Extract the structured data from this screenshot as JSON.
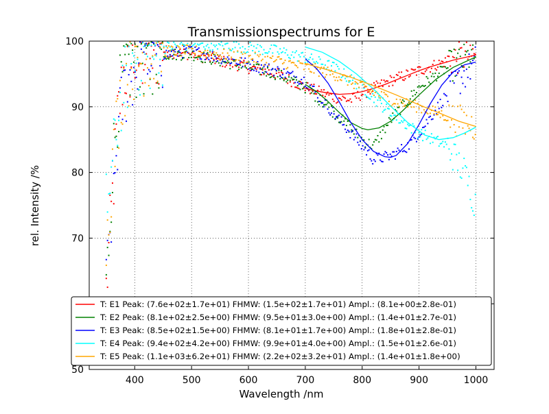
{
  "chart_data": {
    "type": "scatter",
    "title": "Transmissionspectrums for E",
    "xlabel": "Wavelength  /nm",
    "ylabel": "rel. Intensity  /%",
    "xlim": [
      320,
      1032
    ],
    "ylim": [
      50,
      100
    ],
    "xticks": [
      400,
      500,
      600,
      700,
      800,
      900,
      1000
    ],
    "yticks": [
      50,
      60,
      70,
      80,
      90,
      100
    ],
    "grid": true,
    "legend_position": "lower-center",
    "series": [
      {
        "name": "T: E1 Peak: (7.6e+02±1.7e+01)  FHMW: (1.5e+02±1.7e+01)  Ampl.: (8.1e+00±2.8e-01)",
        "color": "#ff0000",
        "points": [
          [
            350,
            62
          ],
          [
            360,
            75
          ],
          [
            370,
            88
          ],
          [
            380,
            95
          ],
          [
            400,
            97
          ],
          [
            420,
            98
          ],
          [
            450,
            98.5
          ],
          [
            500,
            98
          ],
          [
            550,
            97
          ],
          [
            600,
            96
          ],
          [
            650,
            95
          ],
          [
            700,
            93
          ],
          [
            750,
            91.5
          ],
          [
            780,
            91
          ],
          [
            800,
            92
          ],
          [
            850,
            94
          ],
          [
            900,
            95.5
          ],
          [
            950,
            97
          ],
          [
            1000,
            98
          ]
        ],
        "fit": [
          [
            700,
            92.8
          ],
          [
            720,
            92.4
          ],
          [
            740,
            92.1
          ],
          [
            760,
            91.9
          ],
          [
            780,
            92.0
          ],
          [
            800,
            92.3
          ],
          [
            820,
            92.8
          ],
          [
            840,
            93.4
          ],
          [
            860,
            94.1
          ],
          [
            880,
            94.8
          ],
          [
            900,
            95.5
          ],
          [
            920,
            96.1
          ],
          [
            940,
            96.6
          ],
          [
            960,
            97.1
          ],
          [
            980,
            97.5
          ],
          [
            1000,
            97.9
          ]
        ]
      },
      {
        "name": "T: E2 Peak: (8.1e+02±2.5e+00)  FHMW: (9.5e+01±3.0e+00)  Ampl.: (1.4e+01±2.7e-01)",
        "color": "#008000",
        "points": [
          [
            350,
            62
          ],
          [
            360,
            80
          ],
          [
            370,
            90
          ],
          [
            380,
            95
          ],
          [
            400,
            97
          ],
          [
            450,
            98
          ],
          [
            500,
            98
          ],
          [
            550,
            97
          ],
          [
            600,
            96
          ],
          [
            650,
            95
          ],
          [
            700,
            93
          ],
          [
            740,
            90
          ],
          [
            770,
            87.5
          ],
          [
            800,
            85
          ],
          [
            820,
            84
          ],
          [
            850,
            88
          ],
          [
            900,
            93
          ],
          [
            950,
            96
          ],
          [
            1000,
            98
          ]
        ],
        "fit": [
          [
            700,
            93.4
          ],
          [
            720,
            92.3
          ],
          [
            740,
            90.8
          ],
          [
            760,
            89.1
          ],
          [
            780,
            87.6
          ],
          [
            800,
            86.7
          ],
          [
            810,
            86.5
          ],
          [
            830,
            86.8
          ],
          [
            850,
            87.8
          ],
          [
            870,
            89.3
          ],
          [
            900,
            91.8
          ],
          [
            930,
            94.2
          ],
          [
            960,
            96.0
          ],
          [
            1000,
            97.6
          ]
        ]
      },
      {
        "name": "T: E3 Peak: (8.5e+02±1.5e+00)  FHMW: (8.1e+01±1.7e+00)  Ampl.: (1.8e+01±2.8e-01)",
        "color": "#0000ff",
        "points": [
          [
            350,
            62
          ],
          [
            360,
            75
          ],
          [
            370,
            85
          ],
          [
            380,
            92
          ],
          [
            400,
            96
          ],
          [
            450,
            98
          ],
          [
            500,
            98.5
          ],
          [
            550,
            97.5
          ],
          [
            600,
            96.5
          ],
          [
            650,
            95.5
          ],
          [
            700,
            94
          ],
          [
            750,
            89
          ],
          [
            780,
            86
          ],
          [
            800,
            84
          ],
          [
            820,
            82
          ],
          [
            850,
            82.5
          ],
          [
            880,
            84
          ],
          [
            900,
            86
          ],
          [
            950,
            92
          ],
          [
            1000,
            97
          ]
        ],
        "fit": [
          [
            700,
            97.3
          ],
          [
            720,
            95.8
          ],
          [
            740,
            93.6
          ],
          [
            760,
            90.7
          ],
          [
            780,
            87.6
          ],
          [
            800,
            85.0
          ],
          [
            820,
            83.2
          ],
          [
            840,
            82.4
          ],
          [
            850,
            82.3
          ],
          [
            860,
            82.6
          ],
          [
            880,
            84.4
          ],
          [
            900,
            87.3
          ],
          [
            920,
            90.5
          ],
          [
            940,
            93.3
          ],
          [
            960,
            95.3
          ],
          [
            980,
            96.4
          ],
          [
            1000,
            96.8
          ]
        ]
      },
      {
        "name": "T: E4 Peak: (9.4e+02±4.2e+00)  FHMW: (9.9e+01±4.0e+00)  Ampl.: (1.5e+01±2.6e-01)",
        "color": "#00ffff",
        "points": [
          [
            350,
            75
          ],
          [
            360,
            80
          ],
          [
            370,
            88
          ],
          [
            380,
            94
          ],
          [
            400,
            97
          ],
          [
            450,
            99
          ],
          [
            500,
            99.5
          ],
          [
            550,
            99.5
          ],
          [
            600,
            99
          ],
          [
            650,
            98.5
          ],
          [
            700,
            97.5
          ],
          [
            750,
            96
          ],
          [
            800,
            93
          ],
          [
            850,
            89
          ],
          [
            900,
            86
          ],
          [
            950,
            84
          ],
          [
            980,
            80
          ],
          [
            1000,
            75
          ]
        ],
        "fit": [
          [
            700,
            99.1
          ],
          [
            730,
            98.3
          ],
          [
            760,
            96.9
          ],
          [
            790,
            95.0
          ],
          [
            820,
            92.7
          ],
          [
            850,
            90.1
          ],
          [
            880,
            87.6
          ],
          [
            910,
            85.7
          ],
          [
            935,
            85.0
          ],
          [
            960,
            85.3
          ],
          [
            980,
            86.0
          ],
          [
            1000,
            86.9
          ]
        ]
      },
      {
        "name": "T: E5 Peak: (1.1e+03±6.2e+01)  FHMW: (2.2e+02±3.2e+01)  Ampl.: (1.4e+01±1.8e+00)",
        "color": "#ffa500",
        "points": [
          [
            350,
            70
          ],
          [
            360,
            80
          ],
          [
            370,
            88
          ],
          [
            380,
            94
          ],
          [
            400,
            97
          ],
          [
            450,
            98.5
          ],
          [
            500,
            98.5
          ],
          [
            550,
            98
          ],
          [
            600,
            97.5
          ],
          [
            650,
            97
          ],
          [
            700,
            96
          ],
          [
            750,
            95
          ],
          [
            800,
            93
          ],
          [
            850,
            91
          ],
          [
            900,
            90
          ],
          [
            950,
            88.5
          ],
          [
            1000,
            87
          ]
        ],
        "fit": [
          [
            700,
            96.6
          ],
          [
            740,
            95.6
          ],
          [
            780,
            94.5
          ],
          [
            820,
            93.2
          ],
          [
            860,
            91.8
          ],
          [
            900,
            90.3
          ],
          [
            940,
            88.9
          ],
          [
            970,
            87.8
          ],
          [
            1000,
            87.0
          ]
        ]
      }
    ]
  }
}
